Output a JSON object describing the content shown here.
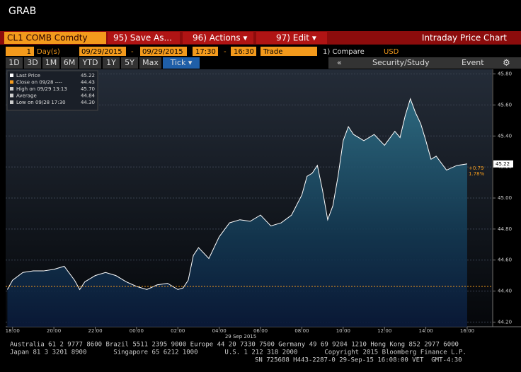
{
  "header": {
    "title": "GRAB",
    "security": "CL1 COMB Comdty",
    "menu": [
      "95) Save As...",
      "96) Actions ▾",
      "97) Edit ▾"
    ],
    "view": "Intraday Price Chart"
  },
  "controls": {
    "period": "1",
    "unit": "Day(s)",
    "start_date": "09/29/2015",
    "dash1": "-",
    "end_date": "09/29/2015",
    "start_time": "17:30",
    "dash2": "-",
    "end_time": "16:30",
    "field": "Trade",
    "compare": "1) Compare",
    "currency": "USD"
  },
  "tabs": [
    "1D",
    "3D",
    "1M",
    "6M",
    "YTD",
    "1Y",
    "5Y",
    "Max",
    "Tick ▾"
  ],
  "toolbar": {
    "collapse": "«",
    "study": "Security/Study",
    "event": "Event"
  },
  "chart_data": {
    "type": "line",
    "series": [
      {
        "name": "Last Price",
        "color": "#ffffff",
        "x": [
          "17:45",
          "18:00",
          "18:30",
          "19:00",
          "19:30",
          "20:00",
          "20:30",
          "21:00",
          "21:15",
          "21:30",
          "22:00",
          "22:30",
          "23:00",
          "23:30",
          "00:00",
          "00:30",
          "01:00",
          "01:30",
          "02:00",
          "02:15",
          "02:30",
          "02:45",
          "03:00",
          "03:30",
          "04:00",
          "04:30",
          "05:00",
          "05:30",
          "06:00",
          "06:30",
          "07:00",
          "07:30",
          "08:00",
          "08:15",
          "08:30",
          "08:45",
          "09:00",
          "09:15",
          "09:30",
          "09:45",
          "10:00",
          "10:15",
          "10:30",
          "11:00",
          "11:30",
          "12:00",
          "12:30",
          "12:45",
          "13:00",
          "13:15",
          "13:30",
          "13:45",
          "14:00",
          "14:15",
          "14:30",
          "15:00",
          "15:30",
          "16:00"
        ],
        "values": [
          44.41,
          44.47,
          44.52,
          44.53,
          44.53,
          44.54,
          44.56,
          44.47,
          44.41,
          44.46,
          44.5,
          44.52,
          44.5,
          44.46,
          44.43,
          44.41,
          44.44,
          44.45,
          44.41,
          44.42,
          44.47,
          44.63,
          44.68,
          44.61,
          44.75,
          44.84,
          44.86,
          44.85,
          44.89,
          44.82,
          44.84,
          44.89,
          45.02,
          45.14,
          45.16,
          45.21,
          45.05,
          44.86,
          44.95,
          45.14,
          45.37,
          45.46,
          45.41,
          45.37,
          45.41,
          45.34,
          45.43,
          45.39,
          45.53,
          45.64,
          45.55,
          45.48,
          45.37,
          45.25,
          45.27,
          45.18,
          45.21,
          45.22
        ]
      }
    ],
    "legend": [
      {
        "name": "Last Price",
        "value": 45.22
      },
      {
        "name": "Close on 09/28 ----",
        "value": 44.43
      },
      {
        "name": "High on 09/29 13:13",
        "value": "45.70"
      },
      {
        "name": "Average",
        "value": 44.84
      },
      {
        "name": "Low on 09/28 17:30",
        "value": "44.30"
      }
    ],
    "change": "+0.79",
    "change_pct": "1.78%",
    "date_label": "29 Sep 2015",
    "xlim": [
      "17:40",
      "17:12"
    ],
    "xticks": [
      "18:00",
      "20:00",
      "22:00",
      "00:00",
      "02:00",
      "04:00",
      "06:00",
      "08:00",
      "10:00",
      "12:00",
      "14:00",
      "16:00"
    ],
    "ylim": [
      44.17,
      45.83
    ],
    "yticks": [
      {
        "value": 44.2,
        "label": "44.20"
      },
      {
        "value": 44.4,
        "label": "44.40"
      },
      {
        "value": 44.6,
        "label": "44.60"
      },
      {
        "value": 44.8,
        "label": "44.80"
      },
      {
        "value": 45,
        "label": "45.00"
      },
      {
        "value": 45.2,
        "label": "45.20"
      },
      {
        "value": 45.4,
        "label": "45.40"
      },
      {
        "value": 45.6,
        "label": "45.60"
      },
      {
        "value": 45.8,
        "label": "45.80"
      }
    ],
    "grid": true
  },
  "footer": [
    "Australia 61 2 9777 8600 Brazil 5511 2395 9000 Europe 44 20 7330 7500 Germany 49 69 9204 1210 Hong Kong 852 2977 6000",
    "Japan 81 3 3201 8900       Singapore 65 6212 1000       U.S. 1 212 318 2000       Copyright 2015 Bloomberg Finance L.P.",
    "SN 725688 H443-2287-0 29-Sep-15 16:08:00 VET  GMT-4:30"
  ]
}
